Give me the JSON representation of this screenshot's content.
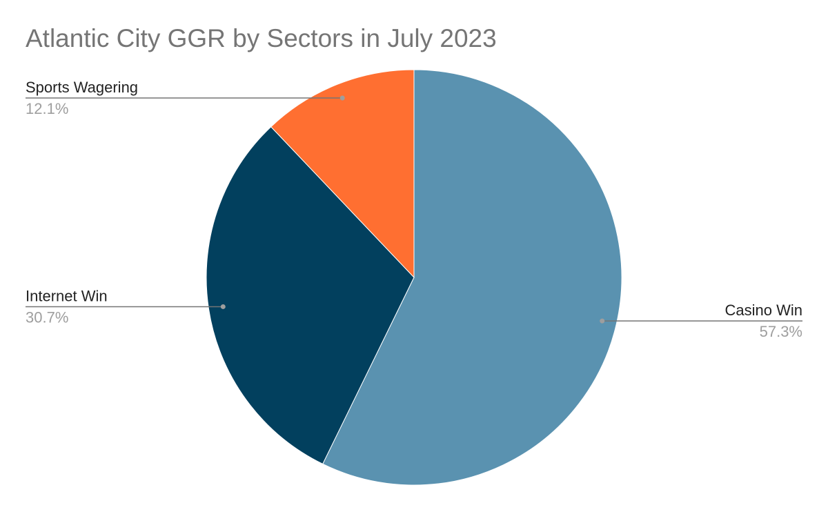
{
  "chart_data": {
    "type": "pie",
    "title": "Atlantic City GGR by Sectors in July 2023",
    "slices": [
      {
        "label": "Casino Win",
        "value": 57.3,
        "display": "57.3%",
        "color": "#5a92b0",
        "label_side": "right"
      },
      {
        "label": "Internet Win",
        "value": 30.7,
        "display": "30.7%",
        "color": "#02405e",
        "label_side": "left"
      },
      {
        "label": "Sports Wagering",
        "value": 12.1,
        "display": "12.1%",
        "color": "#ff6f31",
        "label_side": "left"
      }
    ],
    "start_angle": "12 o'clock",
    "direction": "clockwise",
    "legend": "none"
  }
}
